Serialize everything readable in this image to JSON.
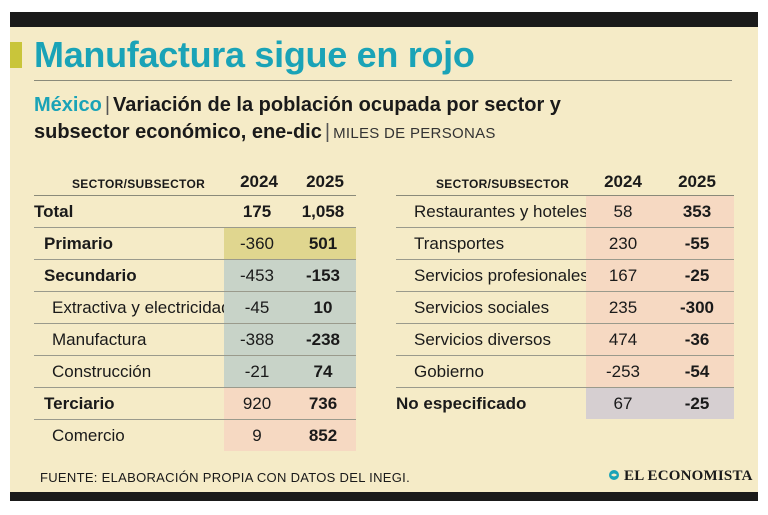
{
  "title": "Manufactura sigue en rojo",
  "subtitle": {
    "country": "México",
    "separator": "|",
    "line1": "Variación de la población ocupada por sector y",
    "line2": "subsector económico, ene-dic",
    "units": "MILES DE PERSONAS"
  },
  "source": "FUENTE: ELABORACIÓN PROPIA CON DATOS DEL INEGI.",
  "brand": "EL ECONOMISTA",
  "colors": {
    "title": "#1aa3b7",
    "primario": "#e0d68f",
    "secundario": "#c8d3c8",
    "terciario": "#f6d9c2",
    "no_especificado": "#d6cfd1"
  },
  "chart_data": {
    "type": "table",
    "title": "Manufactura sigue en rojo",
    "subtitle": "México | Variación de la población ocupada por sector y subsector económico, ene-dic | MILES DE PERSONAS",
    "columns": [
      "SECTOR/SUBSECTOR",
      "2024",
      "2025"
    ],
    "left": [
      {
        "label": "Total",
        "v2024": "175",
        "v2025": "1,058",
        "level": 0,
        "group": "total"
      },
      {
        "label": "Primario",
        "v2024": "-360",
        "v2025": "501",
        "level": 1,
        "group": "primario"
      },
      {
        "label": "Secundario",
        "v2024": "-453",
        "v2025": "-153",
        "level": 1,
        "group": "secundario"
      },
      {
        "label": "Extractiva y electricidad",
        "v2024": "-45",
        "v2025": "10",
        "level": 2,
        "group": "secundario"
      },
      {
        "label": "Manufactura",
        "v2024": "-388",
        "v2025": "-238",
        "level": 2,
        "group": "secundario"
      },
      {
        "label": "Construcción",
        "v2024": "-21",
        "v2025": "74",
        "level": 2,
        "group": "secundario"
      },
      {
        "label": "Terciario",
        "v2024": "920",
        "v2025": "736",
        "level": 1,
        "group": "terciario"
      },
      {
        "label": "Comercio",
        "v2024": "9",
        "v2025": "852",
        "level": 2,
        "group": "terciario"
      }
    ],
    "right": [
      {
        "label": "Restaurantes y hoteles",
        "v2024": "58",
        "v2025": "353",
        "level": 2,
        "group": "terciario"
      },
      {
        "label": "Transportes",
        "v2024": "230",
        "v2025": "-55",
        "level": 2,
        "group": "terciario"
      },
      {
        "label": "Servicios profesionales",
        "v2024": "167",
        "v2025": "-25",
        "level": 2,
        "group": "terciario"
      },
      {
        "label": "Servicios sociales",
        "v2024": "235",
        "v2025": "-300",
        "level": 2,
        "group": "terciario"
      },
      {
        "label": "Servicios diversos",
        "v2024": "474",
        "v2025": "-36",
        "level": 2,
        "group": "terciario"
      },
      {
        "label": "Gobierno",
        "v2024": "-253",
        "v2025": "-54",
        "level": 2,
        "group": "terciario"
      },
      {
        "label": "No especificado",
        "v2024": "67",
        "v2025": "-25",
        "level": 0,
        "group": "no_especificado"
      }
    ]
  }
}
